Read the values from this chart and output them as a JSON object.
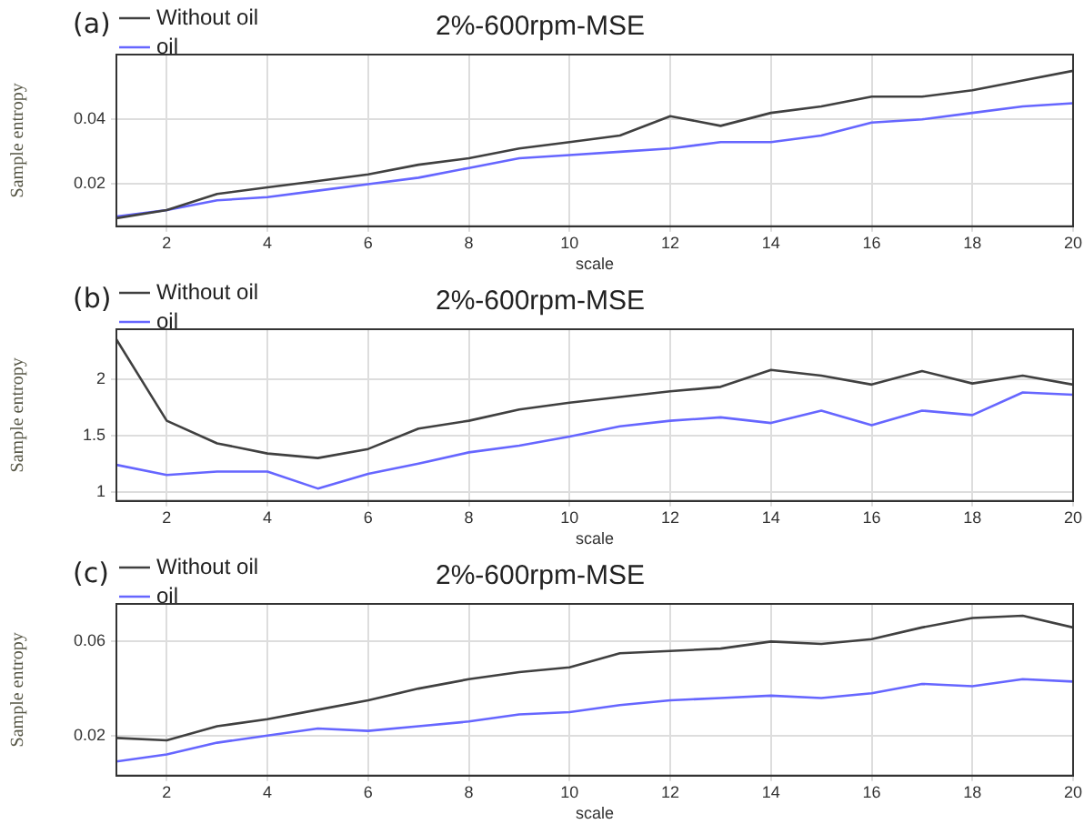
{
  "chart_data": [
    {
      "type": "line",
      "title": "2%-600rpm-MSE",
      "xlabel": "scale",
      "ylabel": "Sample entropy",
      "annotations": [
        "(a)"
      ],
      "x": [
        1,
        2,
        3,
        4,
        5,
        6,
        7,
        8,
        9,
        10,
        11,
        12,
        13,
        14,
        15,
        16,
        17,
        18,
        19,
        20
      ],
      "series": [
        {
          "name": "Without oil",
          "color": "#404040",
          "values": [
            0.0095,
            0.012,
            0.017,
            0.019,
            0.021,
            0.023,
            0.026,
            0.028,
            0.031,
            0.033,
            0.035,
            0.041,
            0.038,
            0.042,
            0.044,
            0.047,
            0.047,
            0.049,
            0.052,
            0.055
          ]
        },
        {
          "name": "oil",
          "color": "#6666ff",
          "values": [
            0.01,
            0.012,
            0.015,
            0.016,
            0.018,
            0.02,
            0.022,
            0.025,
            0.028,
            0.029,
            0.03,
            0.031,
            0.033,
            0.033,
            0.035,
            0.039,
            0.04,
            0.042,
            0.044,
            0.045
          ]
        }
      ],
      "xlim": [
        1,
        20
      ],
      "xticks": [
        2,
        4,
        6,
        8,
        10,
        12,
        14,
        16,
        18,
        20
      ],
      "ylim": [
        0.007,
        0.06
      ],
      "yticks": [
        0.02,
        0.04
      ],
      "grid": true,
      "legend": "top left",
      "marker": "none",
      "line_style": "solid"
    },
    {
      "type": "line",
      "title": "2%-600rpm-MSE",
      "xlabel": "scale",
      "ylabel": "Sample entropy",
      "annotations": [
        "(b)"
      ],
      "x": [
        1,
        2,
        3,
        4,
        5,
        6,
        7,
        8,
        9,
        10,
        11,
        12,
        13,
        14,
        15,
        16,
        17,
        18,
        19,
        20
      ],
      "series": [
        {
          "name": "Without oil",
          "color": "#404040",
          "values": [
            2.35,
            1.63,
            1.43,
            1.34,
            1.3,
            1.38,
            1.56,
            1.63,
            1.73,
            1.79,
            1.84,
            1.89,
            1.93,
            2.08,
            2.03,
            1.95,
            2.07,
            1.96,
            2.03,
            1.95
          ]
        },
        {
          "name": "oil",
          "color": "#6666ff",
          "values": [
            1.24,
            1.15,
            1.18,
            1.18,
            1.03,
            1.16,
            1.25,
            1.35,
            1.41,
            1.49,
            1.58,
            1.63,
            1.66,
            1.61,
            1.72,
            1.59,
            1.72,
            1.68,
            1.88,
            1.86
          ]
        }
      ],
      "xlim": [
        1,
        20
      ],
      "xticks": [
        2,
        4,
        6,
        8,
        10,
        12,
        14,
        16,
        18,
        20
      ],
      "ylim": [
        0.92,
        2.44
      ],
      "yticks": [
        1,
        1.5,
        2
      ],
      "grid": true,
      "legend": "top left",
      "marker": "none",
      "line_style": "solid"
    },
    {
      "type": "line",
      "title": "2%-600rpm-MSE",
      "xlabel": "scale",
      "ylabel": "Sample entropy",
      "annotations": [
        "(c)"
      ],
      "x": [
        1,
        2,
        3,
        4,
        5,
        6,
        7,
        8,
        9,
        10,
        11,
        12,
        13,
        14,
        15,
        16,
        17,
        18,
        19,
        20
      ],
      "series": [
        {
          "name": "Without oil",
          "color": "#404040",
          "values": [
            0.019,
            0.018,
            0.024,
            0.027,
            0.031,
            0.035,
            0.04,
            0.044,
            0.047,
            0.049,
            0.055,
            0.056,
            0.057,
            0.06,
            0.059,
            0.061,
            0.066,
            0.07,
            0.071,
            0.066
          ]
        },
        {
          "name": "oil",
          "color": "#6666ff",
          "values": [
            0.009,
            0.012,
            0.017,
            0.02,
            0.023,
            0.022,
            0.024,
            0.026,
            0.029,
            0.03,
            0.033,
            0.035,
            0.036,
            0.037,
            0.036,
            0.038,
            0.042,
            0.041,
            0.044,
            0.043
          ]
        }
      ],
      "xlim": [
        1,
        20
      ],
      "xticks": [
        2,
        4,
        6,
        8,
        10,
        12,
        14,
        16,
        18,
        20
      ],
      "ylim": [
        0.003,
        0.076
      ],
      "yticks": [
        0.02,
        0.06
      ],
      "grid": true,
      "legend": "top left",
      "marker": "none",
      "line_style": "solid"
    }
  ]
}
